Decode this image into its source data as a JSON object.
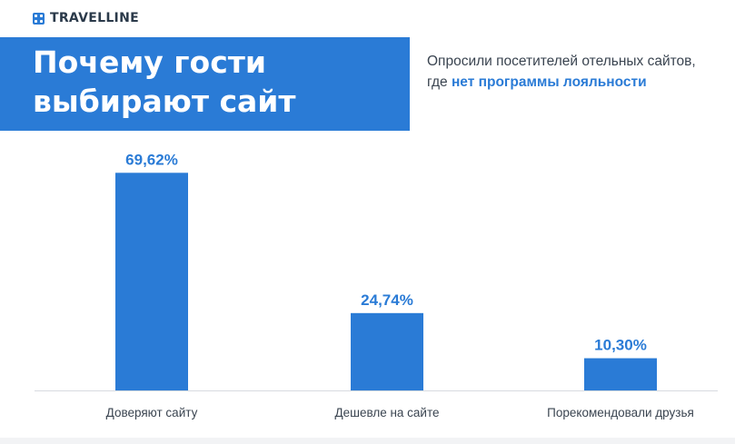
{
  "brand": {
    "name": "TRAVELLINE",
    "logo_icon": "grid-dots-icon",
    "color": "#2a7bd6"
  },
  "header": {
    "title_line1": "Почему гости",
    "title_line2": "выбирают сайт",
    "subtitle_line1": "Опросили посетителей отельных сайтов,",
    "subtitle_prefix": "где ",
    "subtitle_highlight": "нет программы лояльности"
  },
  "chart_data": {
    "type": "bar",
    "categories": [
      "Доверяют сайту",
      "Дешевле на сайте",
      "Порекомендовали друзья"
    ],
    "values": [
      69.62,
      24.74,
      10.3
    ],
    "value_labels": [
      "69,62%",
      "24,74%",
      "10,30%"
    ],
    "ylim": [
      0,
      70
    ],
    "grid": false,
    "bar_color": "#2a7bd6",
    "label_color": "#2a7bd6",
    "axis_color": "#d7dbe0"
  }
}
